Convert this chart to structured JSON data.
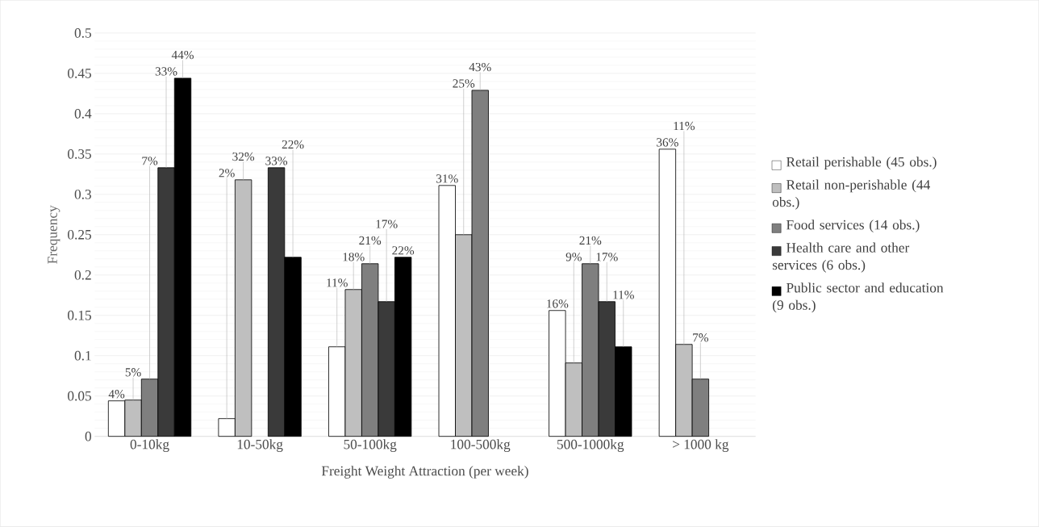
{
  "chart_data": {
    "type": "bar",
    "xlabel": "Freight Weight Attraction (per week)",
    "ylabel": "Frequency",
    "categories": [
      "0-10kg",
      "10-50kg",
      "50-100kg",
      "100-500kg",
      "500-1000kg",
      "> 1000 kg"
    ],
    "ylim": [
      0,
      0.5
    ],
    "yticks": [
      0,
      0.05,
      0.1,
      0.15,
      0.2,
      0.25,
      0.3,
      0.35,
      0.4,
      0.45,
      0.5
    ],
    "grid": "y",
    "legend": "right",
    "series": [
      {
        "name": "Retail perishable (45 obs.)",
        "color": "#ffffff",
        "values": [
          0.044,
          0.022,
          0.111,
          0.311,
          0.156,
          0.356
        ],
        "value_labels": [
          "4%",
          "2%",
          "11%",
          "31%",
          "16%",
          "36%"
        ]
      },
      {
        "name": "Retail non-perishable (44 obs.)",
        "color": "#bfbfbf",
        "values": [
          0.045,
          0.318,
          0.182,
          0.25,
          0.091,
          0.114
        ],
        "value_labels": [
          "5%",
          "32%",
          "18%",
          "25%",
          "9%",
          "11%"
        ]
      },
      {
        "name": "Food services (14 obs.)",
        "color": "#7f7f7f",
        "values": [
          0.071,
          null,
          0.214,
          0.429,
          0.214,
          0.071
        ],
        "value_labels": [
          "7%",
          null,
          "21%",
          "43%",
          "21%",
          "7%"
        ]
      },
      {
        "name": "Health care and other services (6 obs.)",
        "color": "#3a3a3a",
        "values": [
          0.333,
          0.333,
          0.167,
          null,
          0.167,
          null
        ],
        "value_labels": [
          "33%",
          "33%",
          "17%",
          null,
          "17%",
          null
        ]
      },
      {
        "name": "Public sector and education (9 obs.)",
        "color": "#000000",
        "values": [
          0.444,
          0.222,
          0.222,
          null,
          0.111,
          null
        ],
        "value_labels": [
          "44%",
          "22%",
          "22%",
          null,
          "11%",
          null
        ]
      }
    ]
  }
}
